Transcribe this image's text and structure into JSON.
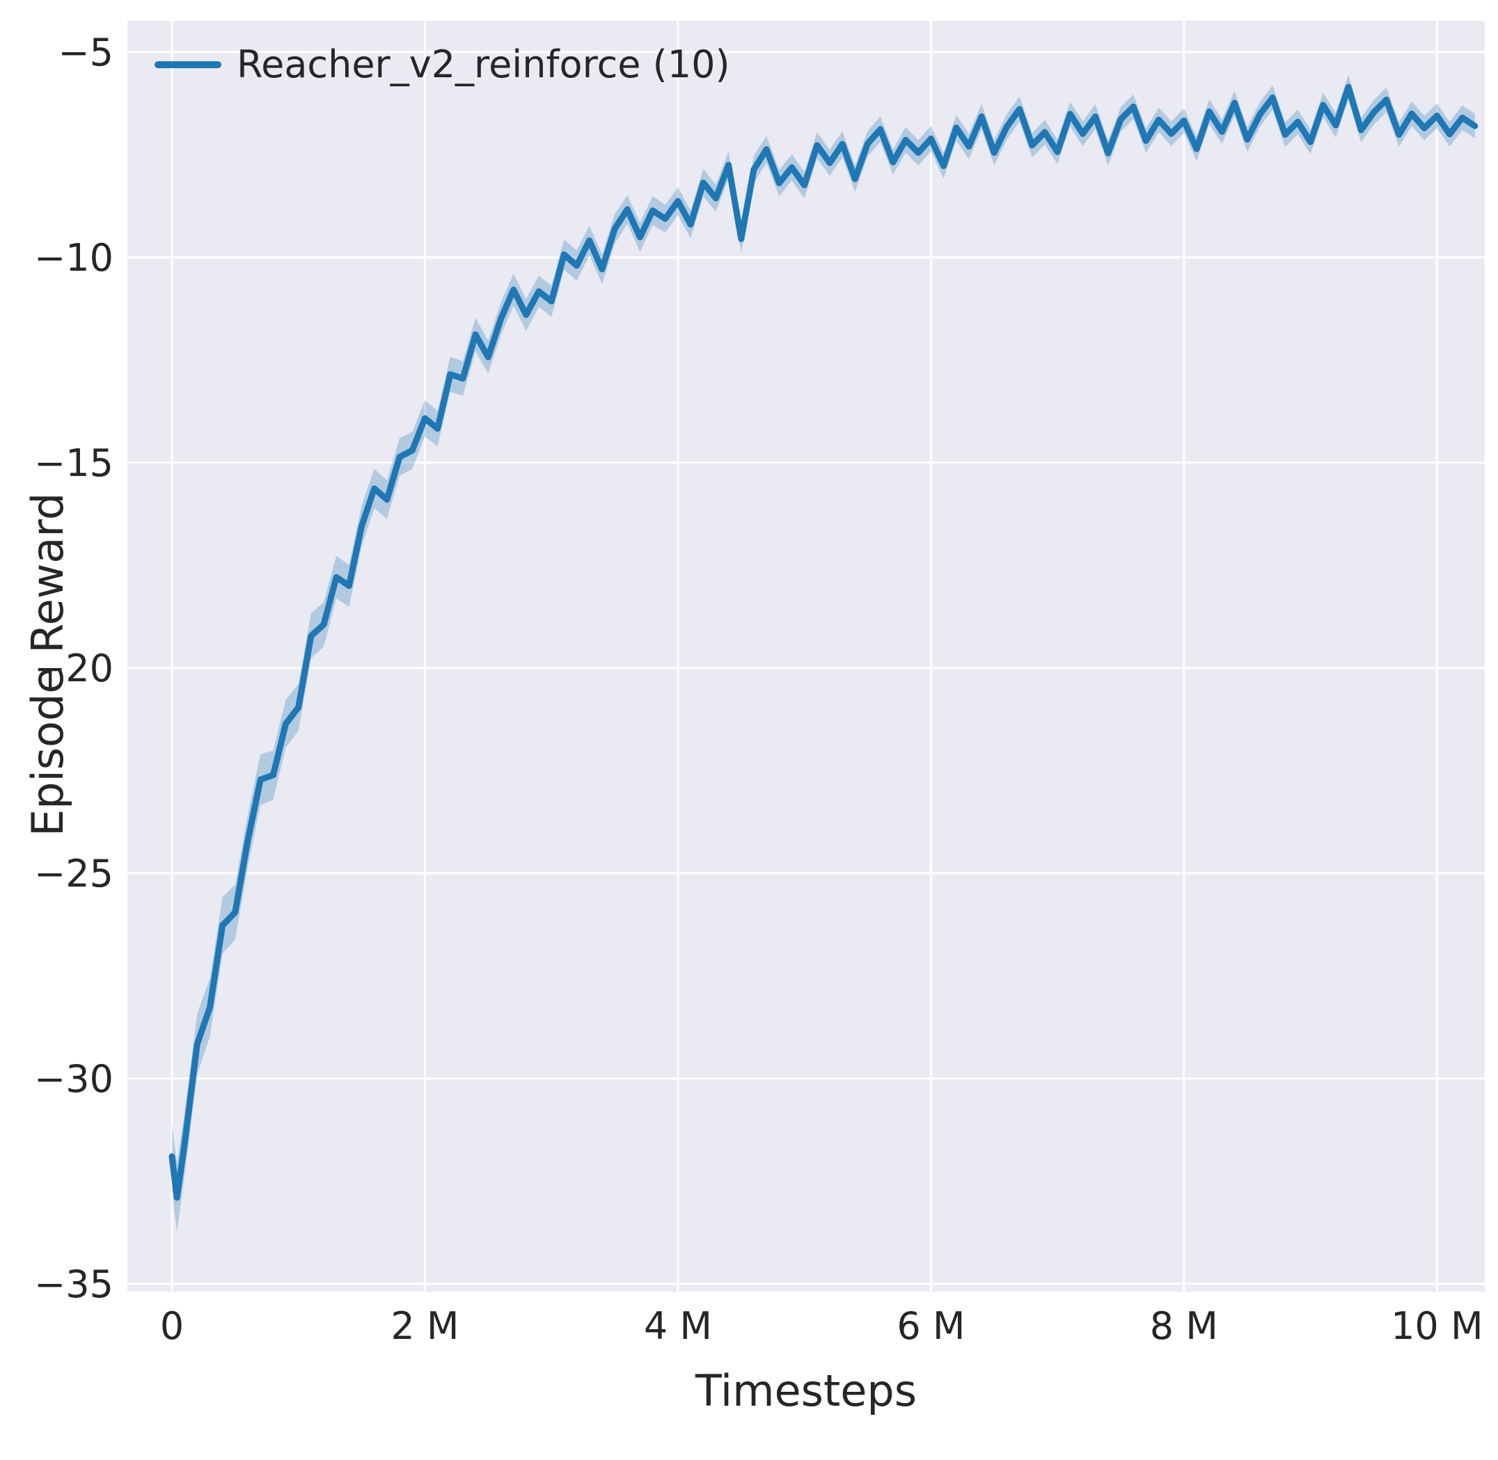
{
  "figure": {
    "background": "#ffffff",
    "axes_background": "#eaeaf2",
    "grid_color": "#ffffff",
    "text_color": "#262626",
    "line_color": "#1f77b4",
    "band_opacity": 0.28
  },
  "chart_data": {
    "type": "line",
    "title": "",
    "xlabel": "Timesteps",
    "ylabel": "Episode Reward",
    "x_unit": "millions of timesteps",
    "grid": true,
    "legend_position": "upper left",
    "xlim": [
      -0.352,
      10.378
    ],
    "ylim": [
      -35.19,
      -4.24
    ],
    "x_ticks": [
      0,
      2,
      4,
      6,
      8,
      10
    ],
    "x_tick_labels": [
      "0",
      "2 M",
      "4 M",
      "6 M",
      "8 M",
      "10 M"
    ],
    "y_ticks": [
      -5,
      -10,
      -15,
      -20,
      -25,
      -30,
      -35
    ],
    "y_tick_labels": [
      "−5",
      "−10",
      "−15",
      "−20",
      "−25",
      "−30",
      "−35"
    ],
    "series": [
      {
        "name": "Reacher_v2_reinforce (10)",
        "color": "#1f77b4",
        "band_color": "#1f77b4",
        "band_alpha": 0.28,
        "x": [
          0,
          0.04,
          0.1,
          0.2,
          0.3,
          0.4,
          0.5,
          0.6,
          0.7,
          0.8,
          0.9,
          1.0,
          1.1,
          1.2,
          1.3,
          1.4,
          1.5,
          1.6,
          1.7,
          1.8,
          1.9,
          2.0,
          2.1,
          2.2,
          2.3,
          2.4,
          2.5,
          2.6,
          2.7,
          2.8,
          2.9,
          3.0,
          3.1,
          3.2,
          3.3,
          3.4,
          3.5,
          3.6,
          3.7,
          3.8,
          3.9,
          4.0,
          4.1,
          4.2,
          4.3,
          4.4,
          4.5,
          4.6,
          4.7,
          4.8,
          4.9,
          5.0,
          5.1,
          5.2,
          5.3,
          5.4,
          5.5,
          5.6,
          5.7,
          5.8,
          5.9,
          6.0,
          6.1,
          6.2,
          6.3,
          6.4,
          6.5,
          6.6,
          6.7,
          6.8,
          6.9,
          7.0,
          7.1,
          7.2,
          7.3,
          7.4,
          7.5,
          7.6,
          7.7,
          7.8,
          7.9,
          8.0,
          8.1,
          8.2,
          8.3,
          8.4,
          8.5,
          8.6,
          8.7,
          8.8,
          8.9,
          9.0,
          9.1,
          9.2,
          9.3,
          9.4,
          9.5,
          9.6,
          9.7,
          9.8,
          9.9,
          10.0,
          10.1,
          10.2,
          10.3
        ],
        "y": [
          -31.9,
          -32.9,
          -31.6,
          -29.16,
          -28.27,
          -26.27,
          -25.95,
          -24.2,
          -22.72,
          -22.61,
          -21.36,
          -20.96,
          -19.22,
          -18.94,
          -17.79,
          -18.0,
          -16.54,
          -15.63,
          -15.9,
          -14.86,
          -14.7,
          -13.92,
          -14.17,
          -12.85,
          -12.95,
          -11.88,
          -12.43,
          -11.5,
          -10.79,
          -11.4,
          -10.83,
          -11.07,
          -9.93,
          -10.2,
          -9.59,
          -10.29,
          -9.31,
          -8.83,
          -9.51,
          -8.86,
          -9.06,
          -8.63,
          -9.2,
          -8.18,
          -8.56,
          -7.75,
          -9.55,
          -7.86,
          -7.37,
          -8.19,
          -7.81,
          -8.24,
          -7.27,
          -7.7,
          -7.24,
          -8.09,
          -7.23,
          -6.88,
          -7.68,
          -7.14,
          -7.45,
          -7.11,
          -7.77,
          -6.84,
          -7.3,
          -6.57,
          -7.45,
          -6.82,
          -6.39,
          -7.27,
          -6.95,
          -7.43,
          -6.51,
          -6.99,
          -6.57,
          -7.46,
          -6.64,
          -6.33,
          -7.16,
          -6.65,
          -6.99,
          -6.67,
          -7.36,
          -6.45,
          -6.94,
          -6.24,
          -7.13,
          -6.52,
          -6.11,
          -7.01,
          -6.7,
          -7.19,
          -6.29,
          -6.78,
          -5.85,
          -6.9,
          -6.47,
          -6.16,
          -7.01,
          -6.5,
          -6.85,
          -6.55,
          -7.0,
          -6.6,
          -6.8
        ],
        "band": [
          0.8,
          0.85,
          0.77,
          0.74,
          0.71,
          0.69,
          0.67,
          0.64,
          0.62,
          0.6,
          0.58,
          0.57,
          0.55,
          0.54,
          0.52,
          0.51,
          0.5,
          0.48,
          0.47,
          0.46,
          0.45,
          0.44,
          0.43,
          0.43,
          0.42,
          0.41,
          0.4,
          0.4,
          0.39,
          0.39,
          0.38,
          0.38,
          0.37,
          0.37,
          0.36,
          0.36,
          0.36,
          0.35,
          0.35,
          0.35,
          0.34,
          0.34,
          0.34,
          0.34,
          0.33,
          0.33,
          0.33,
          0.33,
          0.33,
          0.32,
          0.32,
          0.32,
          0.32,
          0.32,
          0.32,
          0.32,
          0.31,
          0.31,
          0.31,
          0.31,
          0.31,
          0.31,
          0.31,
          0.31,
          0.31,
          0.31,
          0.31,
          0.31,
          0.31,
          0.3,
          0.3,
          0.3,
          0.3,
          0.3,
          0.3,
          0.3,
          0.3,
          0.3,
          0.3,
          0.3,
          0.3,
          0.3,
          0.3,
          0.3,
          0.3,
          0.3,
          0.3,
          0.3,
          0.3,
          0.3,
          0.3,
          0.3,
          0.3,
          0.3,
          0.3,
          0.3,
          0.3,
          0.3,
          0.3,
          0.3,
          0.3,
          0.3,
          0.3,
          0.3,
          0.3
        ]
      }
    ]
  }
}
